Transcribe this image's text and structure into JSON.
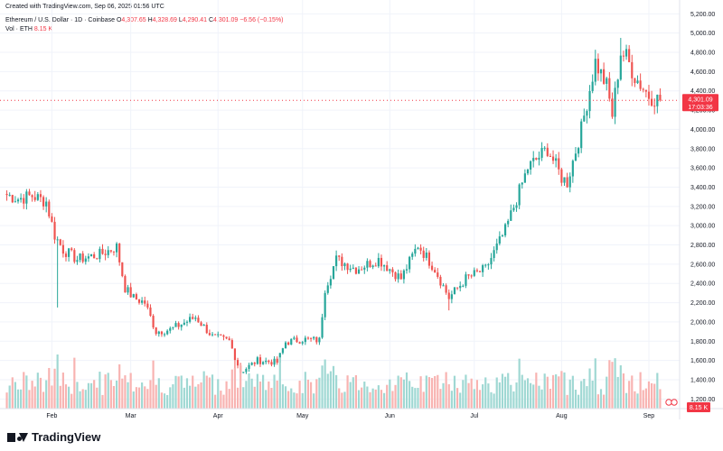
{
  "header": {
    "created": "Created with TradingView.com, Sep 06, 2025 01:56 UTC",
    "symbol": "Ethereum / U.S. Dollar · 1D · Coinbase",
    "open_label": "O",
    "open": "4,307.65",
    "high_label": "H",
    "high": "4,328.69",
    "low_label": "L",
    "low": "4,290.41",
    "close_label": "C",
    "close": "4,301.09",
    "change": "−6.56 (−0.15%)",
    "vol_label": "Vol · ETH",
    "vol_value": "8.15 K"
  },
  "footer": {
    "brand": "TradingView"
  },
  "colors": {
    "up": "#26a69a",
    "down": "#ef5350",
    "vol_up": "#9fd8d3",
    "vol_down": "#f8b3b1",
    "grid": "#f0f3fa",
    "text": "#131722",
    "price_line": "#f23645"
  },
  "chart_data": {
    "type": "candlestick",
    "title": "Ethereum / U.S. Dollar · 1D · Coinbase",
    "ylim": [
      1100,
      5250
    ],
    "y_ticks": [
      1200,
      1400,
      1600,
      1800,
      2000,
      2200,
      2400,
      2600,
      2800,
      3000,
      3200,
      3400,
      3600,
      3800,
      4000,
      4200,
      4400,
      4600,
      4800,
      5000,
      5200
    ],
    "y_tick_labels": [
      "1,200.00",
      "1,400.00",
      "1,600.00",
      "1,800.00",
      "2,000.00",
      "2,200.00",
      "2,400.00",
      "2,600.00",
      "2,800.00",
      "3,000.00",
      "3,200.00",
      "3,400.00",
      "3,600.00",
      "3,800.00",
      "4,000.00",
      "4,200.00",
      "4,400.00",
      "4,600.00",
      "4,800.00",
      "5,000.00",
      "5,200.00"
    ],
    "x_months": [
      {
        "label": "Feb",
        "date": "2025-02-01"
      },
      {
        "label": "Mar",
        "date": "2025-03-01"
      },
      {
        "label": "Apr",
        "date": "2025-04-01"
      },
      {
        "label": "May",
        "date": "2025-05-01"
      },
      {
        "label": "Jun",
        "date": "2025-06-01"
      },
      {
        "label": "Jul",
        "date": "2025-07-01"
      },
      {
        "label": "Aug",
        "date": "2025-08-01"
      },
      {
        "label": "Sep",
        "date": "2025-09-01"
      }
    ],
    "x_range": [
      "2025-01-16",
      "2025-09-05"
    ],
    "current_price": 4301.09,
    "current_price_label": "4,301.09",
    "countdown_label": "17:03:36",
    "volume_last_label": "8.15 K",
    "anchors": [
      {
        "date": "2025-01-16",
        "close": 3320
      },
      {
        "date": "2025-01-20",
        "close": 3280
      },
      {
        "date": "2025-01-25",
        "close": 3310
      },
      {
        "date": "2025-01-30",
        "close": 3250
      },
      {
        "date": "2025-02-02",
        "close": 2900
      },
      {
        "date": "2025-02-05",
        "close": 2750
      },
      {
        "date": "2025-02-10",
        "close": 2650
      },
      {
        "date": "2025-02-18",
        "close": 2700
      },
      {
        "date": "2025-02-24",
        "close": 2780
      },
      {
        "date": "2025-02-27",
        "close": 2350
      },
      {
        "date": "2025-03-02",
        "close": 2250
      },
      {
        "date": "2025-03-06",
        "close": 2200
      },
      {
        "date": "2025-03-10",
        "close": 1900
      },
      {
        "date": "2025-03-15",
        "close": 1920
      },
      {
        "date": "2025-03-24",
        "close": 2050
      },
      {
        "date": "2025-03-30",
        "close": 1850
      },
      {
        "date": "2025-04-05",
        "close": 1800
      },
      {
        "date": "2025-04-09",
        "close": 1480
      },
      {
        "date": "2025-04-15",
        "close": 1600
      },
      {
        "date": "2025-04-22",
        "close": 1580
      },
      {
        "date": "2025-04-25",
        "close": 1790
      },
      {
        "date": "2025-05-01",
        "close": 1820
      },
      {
        "date": "2025-05-07",
        "close": 1810
      },
      {
        "date": "2025-05-09",
        "close": 2350
      },
      {
        "date": "2025-05-13",
        "close": 2650
      },
      {
        "date": "2025-05-20",
        "close": 2550
      },
      {
        "date": "2025-05-28",
        "close": 2650
      },
      {
        "date": "2025-06-05",
        "close": 2450
      },
      {
        "date": "2025-06-11",
        "close": 2800
      },
      {
        "date": "2025-06-17",
        "close": 2550
      },
      {
        "date": "2025-06-22",
        "close": 2250
      },
      {
        "date": "2025-06-28",
        "close": 2450
      },
      {
        "date": "2025-07-05",
        "close": 2550
      },
      {
        "date": "2025-07-12",
        "close": 2950
      },
      {
        "date": "2025-07-20",
        "close": 3600
      },
      {
        "date": "2025-07-27",
        "close": 3800
      },
      {
        "date": "2025-08-01",
        "close": 3500
      },
      {
        "date": "2025-08-03",
        "close": 3450
      },
      {
        "date": "2025-08-08",
        "close": 4000
      },
      {
        "date": "2025-08-13",
        "close": 4700
      },
      {
        "date": "2025-08-17",
        "close": 4450
      },
      {
        "date": "2025-08-19",
        "close": 4150
      },
      {
        "date": "2025-08-22",
        "close": 4800
      },
      {
        "date": "2025-08-24",
        "close": 4750
      },
      {
        "date": "2025-08-27",
        "close": 4550
      },
      {
        "date": "2025-09-01",
        "close": 4350
      },
      {
        "date": "2025-09-05",
        "close": 4301
      }
    ],
    "first_open": 3330,
    "spikes": [
      {
        "date": "2025-02-03",
        "low": 2150,
        "volume": 1.0
      },
      {
        "date": "2025-04-07",
        "low": 1390,
        "volume": 0.75
      },
      {
        "date": "2025-06-22",
        "low": 2120,
        "volume": 0.45
      },
      {
        "date": "2025-08-22",
        "high": 4950,
        "volume": 0.8
      }
    ]
  }
}
